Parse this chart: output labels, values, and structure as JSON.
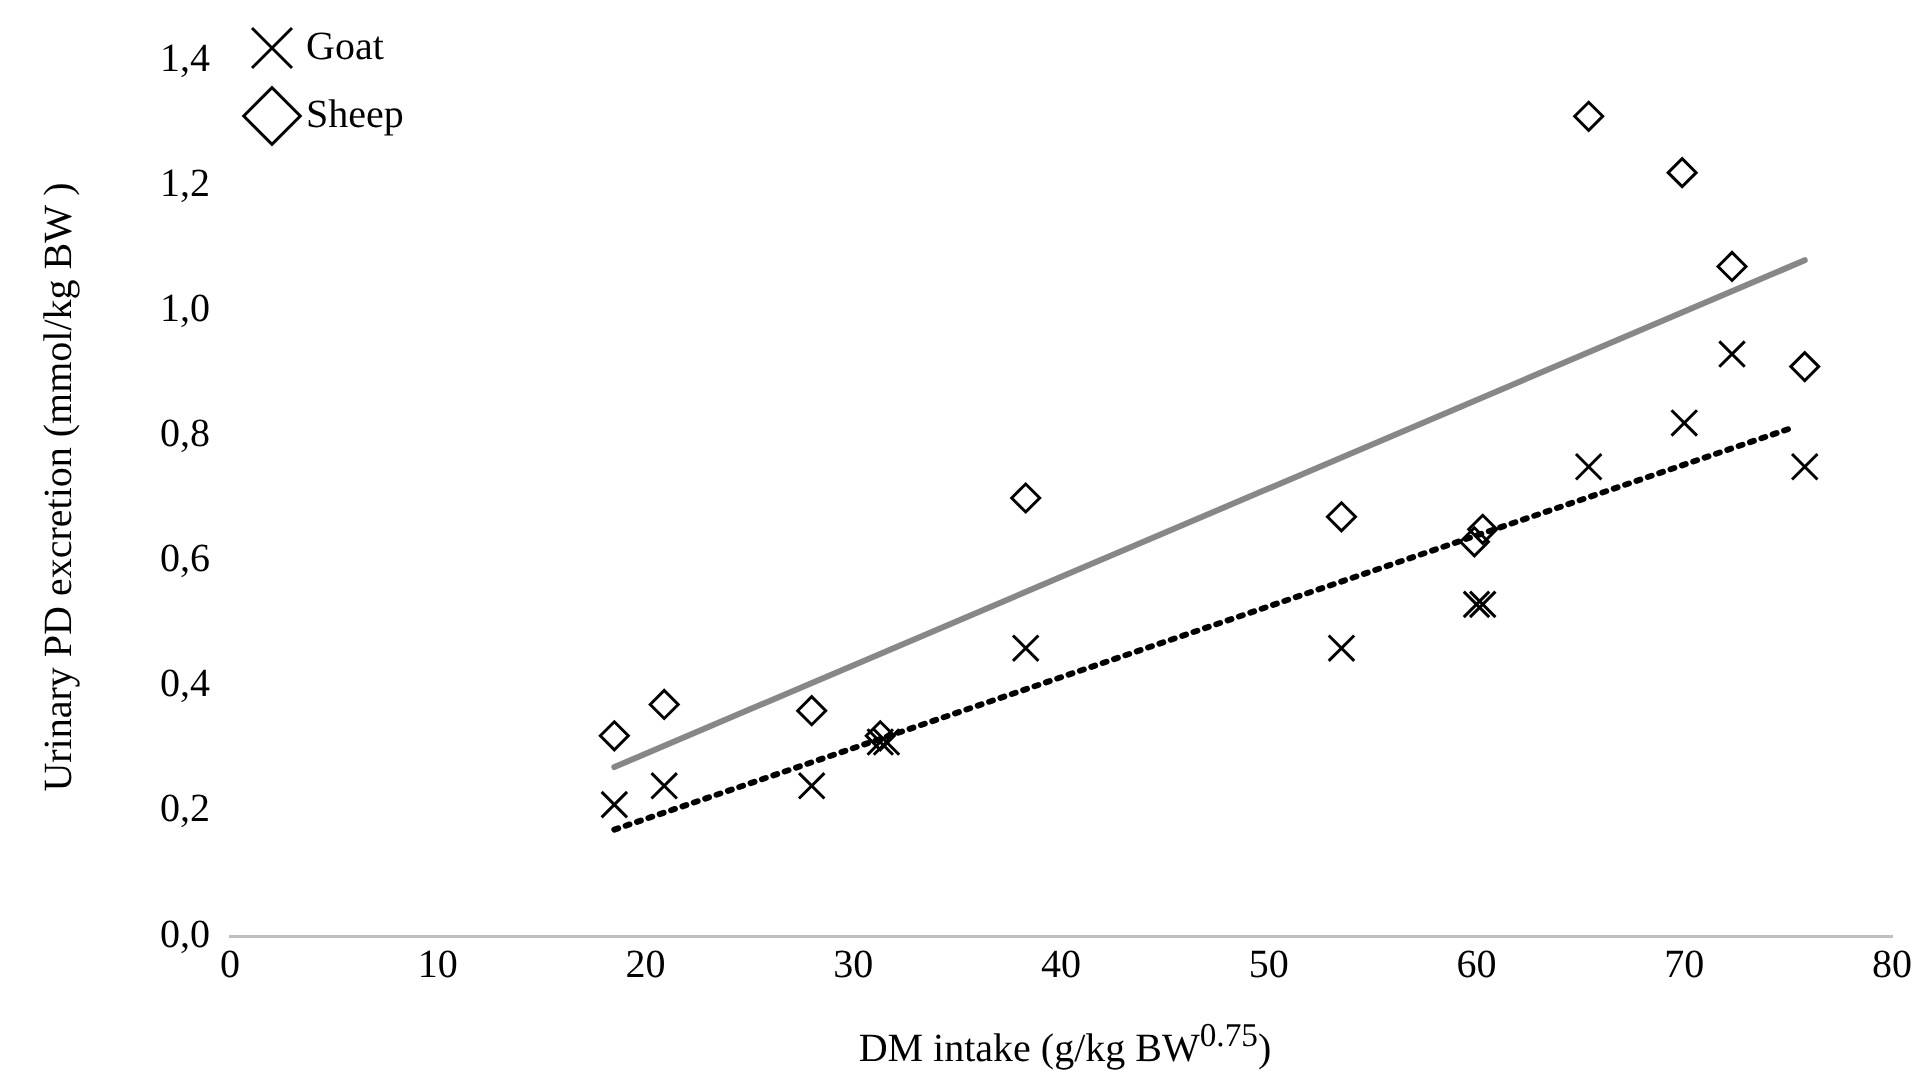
{
  "chart_data": {
    "type": "scatter",
    "xlabel": "DM intake (g/kg BW$^{0.75}$)",
    "ylabel": "Urinary PD excretion (mmol/kg BW )",
    "xlim": [
      0,
      80
    ],
    "xticks": [
      0,
      10,
      20,
      30,
      40,
      50,
      60,
      70,
      80
    ],
    "ylim": [
      0,
      1.4
    ],
    "yticks": [
      {
        "value": 0,
        "label": "0,0"
      },
      {
        "value": 0.2,
        "label": "0,2"
      },
      {
        "value": 0.4,
        "label": "0,4"
      },
      {
        "value": 0.6,
        "label": "0,6"
      },
      {
        "value": 0.8,
        "label": "0,8"
      },
      {
        "value": 1.0,
        "label": "1,0"
      },
      {
        "value": 1.2,
        "label": "1,2"
      },
      {
        "value": 1.4,
        "label": "1,4"
      }
    ],
    "grid": false,
    "legend": "top left",
    "series": [
      {
        "name": "Goat",
        "color": "#000000",
        "marker": "cross",
        "x": [
          18.5,
          20.9,
          28,
          31.3,
          31.6,
          38.3,
          53.5,
          60,
          60.3,
          65.4,
          70,
          72.3,
          75.8
        ],
        "values": [
          0.21,
          0.24,
          0.24,
          0.31,
          0.31,
          0.46,
          0.46,
          0.53,
          0.53,
          0.75,
          0.82,
          0.93,
          0.75
        ]
      },
      {
        "name": "Sheep",
        "color": "#000000",
        "marker": "diamond",
        "x": [
          18.5,
          20.9,
          28,
          31.3,
          38.3,
          53.5,
          59.9,
          60.3,
          65.4,
          69.9,
          72.3,
          75.8
        ],
        "values": [
          0.32,
          0.37,
          0.36,
          0.32,
          0.7,
          0.67,
          0.63,
          0.65,
          1.31,
          1.22,
          1.07,
          0.91
        ]
      },
      {
        "type": "line",
        "color": "#000000",
        "line_style": "dotted",
        "marker": "none",
        "x": [
          18.5,
          75
        ],
        "values": [
          0.17,
          0.81
        ]
      },
      {
        "type": "line",
        "color": "#878787",
        "line_style": "solid",
        "marker": "none",
        "x": [
          18.5,
          75.8
        ],
        "values": [
          0.27,
          1.08
        ]
      }
    ]
  }
}
